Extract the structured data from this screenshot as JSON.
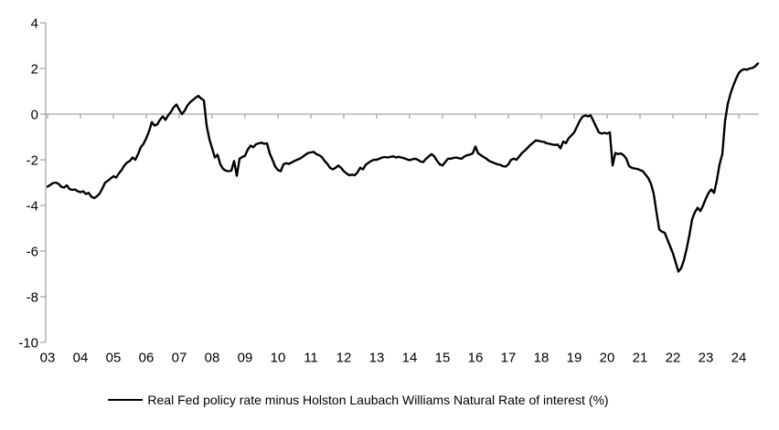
{
  "legend": {
    "label": "Real Fed policy rate minus Holston Laubach Williams Natural Rate of interest (%)"
  },
  "colors": {
    "line": "#000000",
    "axis": "#a6a6a6",
    "label": "#000000",
    "background": "#ffffff"
  },
  "chart_data": {
    "type": "line",
    "title": "",
    "xlabel": "",
    "ylabel": "",
    "legend_position": "bottom-center",
    "grid": "zero-line-only",
    "y_axis": {
      "ticks": [
        4,
        2,
        0,
        -2,
        -4,
        -6,
        -8,
        -10
      ],
      "range": [
        -10,
        4
      ]
    },
    "x_axis": {
      "tick_labels": [
        "03",
        "04",
        "05",
        "06",
        "07",
        "08",
        "09",
        "10",
        "11",
        "12",
        "13",
        "14",
        "15",
        "16",
        "17",
        "18",
        "19",
        "20",
        "21",
        "22",
        "23",
        "24"
      ],
      "tick_years": [
        2003,
        2004,
        2005,
        2006,
        2007,
        2008,
        2009,
        2010,
        2011,
        2012,
        2013,
        2014,
        2015,
        2016,
        2017,
        2018,
        2019,
        2020,
        2021,
        2022,
        2023,
        2024
      ]
    },
    "series": [
      {
        "name": "Real Fed policy rate minus Holston Laubach Williams Natural Rate of interest (%)",
        "start": "2003-01",
        "frequency": "monthly",
        "values": [
          -3.18,
          -3.1,
          -3.02,
          -3.0,
          -3.05,
          -3.18,
          -3.22,
          -3.12,
          -3.28,
          -3.32,
          -3.3,
          -3.38,
          -3.42,
          -3.38,
          -3.5,
          -3.45,
          -3.62,
          -3.68,
          -3.6,
          -3.48,
          -3.25,
          -3.0,
          -2.92,
          -2.82,
          -2.72,
          -2.78,
          -2.6,
          -2.45,
          -2.25,
          -2.12,
          -2.05,
          -1.9,
          -2.0,
          -1.75,
          -1.45,
          -1.3,
          -1.05,
          -0.75,
          -0.35,
          -0.5,
          -0.45,
          -0.25,
          -0.1,
          -0.25,
          -0.05,
          0.1,
          0.3,
          0.42,
          0.2,
          0.0,
          0.15,
          0.38,
          0.52,
          0.62,
          0.72,
          0.8,
          0.68,
          0.6,
          -0.5,
          -1.1,
          -1.5,
          -1.9,
          -1.78,
          -2.2,
          -2.4,
          -2.48,
          -2.5,
          -2.48,
          -2.05,
          -2.7,
          -1.95,
          -1.88,
          -1.82,
          -1.55,
          -1.38,
          -1.45,
          -1.32,
          -1.28,
          -1.25,
          -1.3,
          -1.28,
          -1.72,
          -2.0,
          -2.3,
          -2.45,
          -2.5,
          -2.2,
          -2.15,
          -2.18,
          -2.12,
          -2.05,
          -2.0,
          -1.95,
          -1.87,
          -1.78,
          -1.7,
          -1.68,
          -1.65,
          -1.75,
          -1.8,
          -1.88,
          -2.05,
          -2.18,
          -2.35,
          -2.42,
          -2.35,
          -2.25,
          -2.35,
          -2.5,
          -2.6,
          -2.68,
          -2.65,
          -2.68,
          -2.55,
          -2.35,
          -2.42,
          -2.22,
          -2.13,
          -2.05,
          -2.0,
          -2.0,
          -1.95,
          -1.9,
          -1.88,
          -1.9,
          -1.87,
          -1.85,
          -1.9,
          -1.87,
          -1.9,
          -1.93,
          -1.98,
          -2.02,
          -1.98,
          -1.95,
          -2.0,
          -2.08,
          -2.1,
          -1.95,
          -1.85,
          -1.75,
          -1.85,
          -2.05,
          -2.2,
          -2.25,
          -2.1,
          -1.95,
          -1.95,
          -1.92,
          -1.9,
          -1.93,
          -1.95,
          -1.85,
          -1.8,
          -1.77,
          -1.72,
          -1.42,
          -1.72,
          -1.8,
          -1.88,
          -1.95,
          -2.05,
          -2.1,
          -2.15,
          -2.2,
          -2.22,
          -2.28,
          -2.3,
          -2.2,
          -2.0,
          -1.95,
          -2.0,
          -1.85,
          -1.7,
          -1.6,
          -1.48,
          -1.35,
          -1.25,
          -1.15,
          -1.17,
          -1.2,
          -1.22,
          -1.28,
          -1.3,
          -1.33,
          -1.35,
          -1.33,
          -1.5,
          -1.2,
          -1.27,
          -1.05,
          -0.93,
          -0.8,
          -0.55,
          -0.3,
          -0.12,
          -0.05,
          -0.1,
          -0.05,
          -0.3,
          -0.55,
          -0.8,
          -0.85,
          -0.82,
          -0.85,
          -0.8,
          -2.25,
          -1.7,
          -1.75,
          -1.72,
          -1.8,
          -1.95,
          -2.28,
          -2.35,
          -2.38,
          -2.4,
          -2.45,
          -2.5,
          -2.65,
          -2.8,
          -3.05,
          -3.5,
          -4.3,
          -5.05,
          -5.15,
          -5.2,
          -5.5,
          -5.8,
          -6.1,
          -6.5,
          -6.9,
          -6.75,
          -6.4,
          -5.9,
          -5.3,
          -4.6,
          -4.3,
          -4.1,
          -4.25,
          -4.0,
          -3.7,
          -3.45,
          -3.3,
          -3.45,
          -2.9,
          -2.2,
          -1.75,
          -0.3,
          0.45,
          0.9,
          1.25,
          1.55,
          1.8,
          1.92,
          1.97,
          1.95,
          2.0,
          2.02,
          2.1,
          2.22
        ]
      }
    ]
  }
}
